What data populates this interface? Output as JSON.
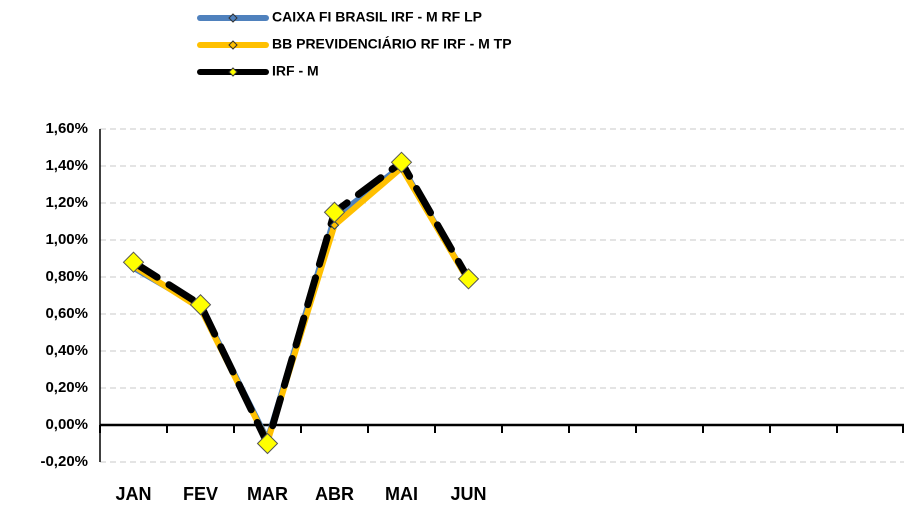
{
  "chart_data": {
    "type": "line",
    "categories": [
      "JAN",
      "FEV",
      "MAR",
      "ABR",
      "MAI",
      "JUN",
      null,
      null,
      null,
      null,
      null,
      null
    ],
    "series": [
      {
        "name": "CAIXA FI BRASIL IRF - M RF LP",
        "color": "#4f81bd",
        "marker_color": "#4f81bd",
        "line_style": "solid",
        "values": [
          0.85,
          0.64,
          -0.08,
          1.12,
          1.4,
          0.78,
          null,
          null,
          null,
          null,
          null,
          null
        ]
      },
      {
        "name": "BB PREVIDENCIÁRIO RF IRF - M TP",
        "color": "#ffc000",
        "marker_color": "#ffc000",
        "line_style": "solid",
        "values": [
          0.86,
          0.63,
          -0.09,
          1.08,
          1.39,
          0.78,
          null,
          null,
          null,
          null,
          null,
          null
        ]
      },
      {
        "name": "IRF - M",
        "color": "#000000",
        "marker_color": "#ffff00",
        "line_style": "dashed",
        "values": [
          0.88,
          0.65,
          -0.1,
          1.15,
          1.42,
          0.79,
          null,
          null,
          null,
          null,
          null,
          null
        ]
      }
    ],
    "ylim": [
      -0.2,
      1.6
    ],
    "yticks": [
      {
        "value": -0.2,
        "label": "-0,20%"
      },
      {
        "value": 0,
        "label": "0,00%"
      },
      {
        "value": 0.2,
        "label": "0,20%"
      },
      {
        "value": 0.4,
        "label": "0,40%"
      },
      {
        "value": 0.6,
        "label": "0,60%"
      },
      {
        "value": 0.8,
        "label": "0,80%"
      },
      {
        "value": 1.0,
        "label": "1,00%"
      },
      {
        "value": 1.2,
        "label": "1,20%"
      },
      {
        "value": 1.4,
        "label": "1,40%"
      },
      {
        "value": 1.6,
        "label": "1,60%"
      }
    ],
    "grid": true,
    "legend": "top"
  }
}
